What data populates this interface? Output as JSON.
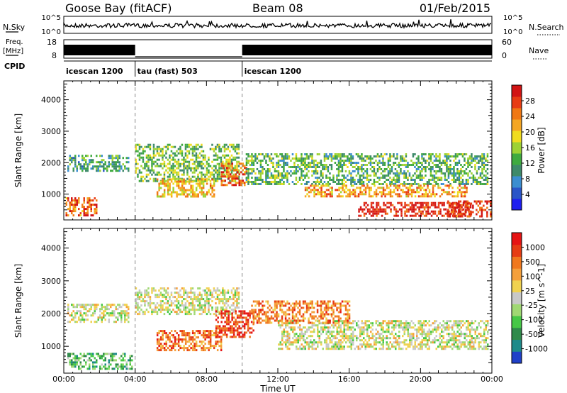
{
  "header": {
    "site": "Goose Bay (fitACF)",
    "beam": "Beam 08",
    "date": "01/Feb/2015"
  },
  "panels": {
    "nsky_label": "N.Sky",
    "nsky_ticks": [
      "10^5",
      "10^0"
    ],
    "nsearch_label": "N.Search",
    "nsearch_ticks": [
      "10^5",
      "10^0"
    ],
    "freq_label_1": "Freq.",
    "freq_label_2": "[MHz]",
    "freq_ticks": [
      "18",
      "8"
    ],
    "nave_label": "Nave",
    "nave_ticks": [
      "60",
      "0"
    ],
    "cpid_label": "CPID",
    "cpid_segments": [
      {
        "name": "icescan 1200",
        "start_h": 0,
        "end_h": 4
      },
      {
        "name": "tau (fast) 503",
        "start_h": 4,
        "end_h": 10
      },
      {
        "name": "icescan 1200",
        "start_h": 10,
        "end_h": 24
      }
    ]
  },
  "chart_data": [
    {
      "type": "heatmap",
      "title": "",
      "xlabel": "Time UT",
      "ylabel": "Slant Range [km]",
      "xlim": [
        0,
        24
      ],
      "ylim": [
        180,
        4600
      ],
      "x_ticks": [
        "00:00",
        "04:00",
        "08:00",
        "12:00",
        "16:00",
        "20:00",
        "00:00"
      ],
      "y_ticks": [
        1000,
        2000,
        3000,
        4000
      ],
      "colorbar": {
        "label": "Power [dB]",
        "ticks": [
          "4",
          "8",
          "12",
          "16",
          "20",
          "24",
          "28"
        ],
        "colors": [
          "#1e1ef0",
          "#2a55c8",
          "#3b8ed0",
          "#3e8a6a",
          "#3faa3f",
          "#9ed233",
          "#f0dc1e",
          "#f5a623",
          "#f07814",
          "#e83c14",
          "#d21414"
        ]
      },
      "echo_bands": [
        {
          "t0": 0.2,
          "t1": 3.6,
          "r0": 1750,
          "r1": 2250,
          "level": 0.35
        },
        {
          "t0": 4.0,
          "t1": 9.8,
          "r0": 1400,
          "r1": 2600,
          "level": 0.45
        },
        {
          "t0": 5.2,
          "t1": 8.4,
          "r0": 900,
          "r1": 1500,
          "level": 0.65
        },
        {
          "t0": 8.8,
          "t1": 10.2,
          "r0": 1300,
          "r1": 2000,
          "level": 0.8
        },
        {
          "t0": 10.2,
          "t1": 23.8,
          "r0": 1300,
          "r1": 2300,
          "level": 0.4
        },
        {
          "t0": 13.5,
          "t1": 22.6,
          "r0": 900,
          "r1": 1300,
          "level": 0.7
        },
        {
          "t0": 16.5,
          "t1": 22.8,
          "r0": 300,
          "r1": 750,
          "level": 0.95
        },
        {
          "t0": 0.1,
          "t1": 1.8,
          "r0": 300,
          "r1": 900,
          "level": 0.8
        },
        {
          "t0": 21.5,
          "t1": 23.9,
          "r0": 300,
          "r1": 800,
          "level": 0.9
        }
      ]
    },
    {
      "type": "heatmap",
      "title": "",
      "xlabel": "Time UT",
      "ylabel": "Slant Range [km]",
      "xlim": [
        0,
        24
      ],
      "ylim": [
        180,
        4600
      ],
      "x_ticks": [
        "00:00",
        "04:00",
        "08:00",
        "12:00",
        "16:00",
        "20:00",
        "00:00"
      ],
      "y_ticks": [
        1000,
        2000,
        3000,
        4000
      ],
      "colorbar": {
        "label": "Velocity [m s^-1]",
        "ticks": [
          "1000",
          "500",
          "100",
          "25",
          "-25",
          "-100",
          "-500",
          "-1000"
        ],
        "colors": [
          "#2040c8",
          "#1e8a8a",
          "#2f8a4a",
          "#46c846",
          "#a0d873",
          "#c8c8c8",
          "#f0d250",
          "#f5a03c",
          "#f0781e",
          "#e63c14",
          "#e61414"
        ]
      },
      "echo_bands": [
        {
          "t0": 0.2,
          "t1": 3.6,
          "r0": 1750,
          "r1": 2300,
          "level": 0.5
        },
        {
          "t0": 4.0,
          "t1": 9.8,
          "r0": 2000,
          "r1": 2800,
          "level": 0.5
        },
        {
          "t0": 5.2,
          "t1": 8.8,
          "r0": 900,
          "r1": 1500,
          "level": 0.78
        },
        {
          "t0": 8.5,
          "t1": 10.6,
          "r0": 1300,
          "r1": 2100,
          "level": 0.9
        },
        {
          "t0": 12.0,
          "t1": 23.8,
          "r0": 900,
          "r1": 1800,
          "level": 0.5
        },
        {
          "t0": 10.5,
          "t1": 16.0,
          "r0": 1700,
          "r1": 2400,
          "level": 0.75
        },
        {
          "t0": 0.2,
          "t1": 3.8,
          "r0": 300,
          "r1": 800,
          "level": 0.3
        }
      ]
    }
  ]
}
